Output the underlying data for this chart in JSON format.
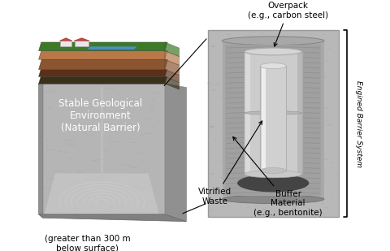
{
  "bg_color": "#ffffff",
  "labels": {
    "overpack": "Overpack\n(e.g., carbon steel)",
    "stable_geo": "Stable Geological\nEnvironment\n(Natural Barrier)",
    "depth": "(greater than 300 m\nbelow surface)",
    "vitrified": "Vitrified\nWaste",
    "buffer": "Buffer\nMaterial\n(e.g., bentonite)",
    "engineered": "Engined Barrier System"
  },
  "colors": {
    "white": "#ffffff",
    "black": "#000000",
    "grass": "#3d7a25",
    "river": "#4a90c8",
    "soil1": "#7a4a2a",
    "soil2": "#a06838",
    "soil3": "#c49060",
    "soil_dark": "#3a2010",
    "rock_main": "#aaaaaa",
    "rock_side": "#888888",
    "rock_bottom_face": "#c8c8c8",
    "rock_dark": "#606060",
    "bentonite_outer": "#b0b0b0",
    "bentonite_inner": "#a8a8a8",
    "overpack_body": "#c0c0c0",
    "canister_body": "#d8d8d8",
    "canister_highlight": "#f0f0f0",
    "hole_dark": "#505050",
    "text_white": "#ffffff",
    "text_black": "#000000"
  }
}
